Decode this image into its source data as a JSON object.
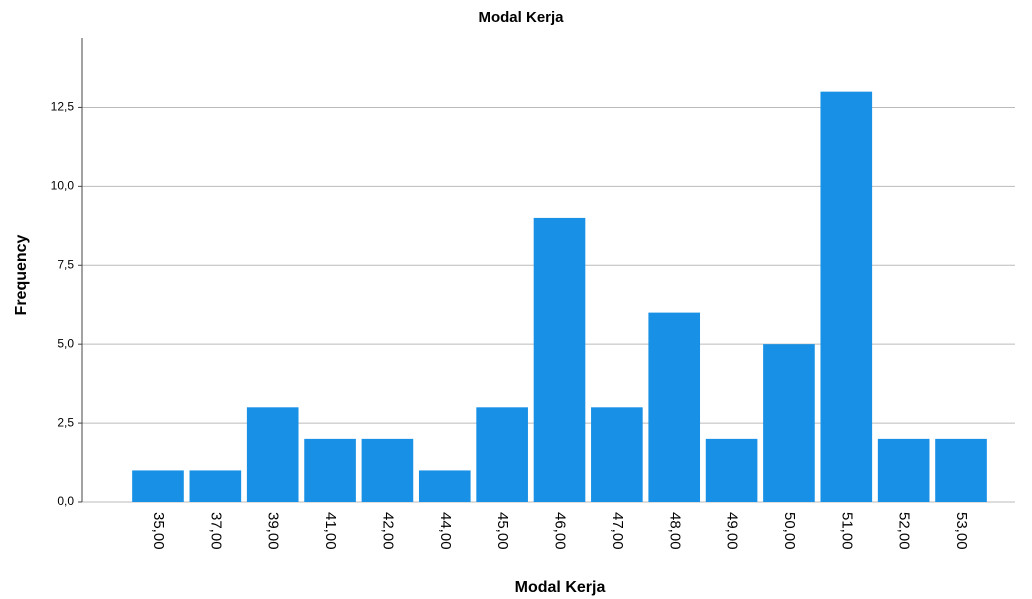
{
  "chart_data": {
    "type": "bar",
    "title": "Modal Kerja",
    "x_label": "Modal Kerja",
    "y_label": "Frequency",
    "categories": [
      "35,00",
      "37,00",
      "39,00",
      "41,00",
      "42,00",
      "44,00",
      "45,00",
      "46,00",
      "47,00",
      "48,00",
      "49,00",
      "50,00",
      "51,00",
      "52,00",
      "53,00"
    ],
    "values": [
      1,
      1,
      3,
      2,
      2,
      1,
      3,
      9,
      3,
      6,
      2,
      5,
      13,
      2,
      2
    ],
    "color": "#1790e6",
    "ylim": [
      0,
      14.7
    ],
    "yticks": [
      {
        "value": 0,
        "label": "0,0"
      },
      {
        "value": 2.5,
        "label": "2,5"
      },
      {
        "value": 5,
        "label": "5,0"
      },
      {
        "value": 7.5,
        "label": "7,5"
      },
      {
        "value": 10,
        "label": "10,0"
      },
      {
        "value": 12.5,
        "label": "12,5"
      }
    ],
    "grid": true
  }
}
